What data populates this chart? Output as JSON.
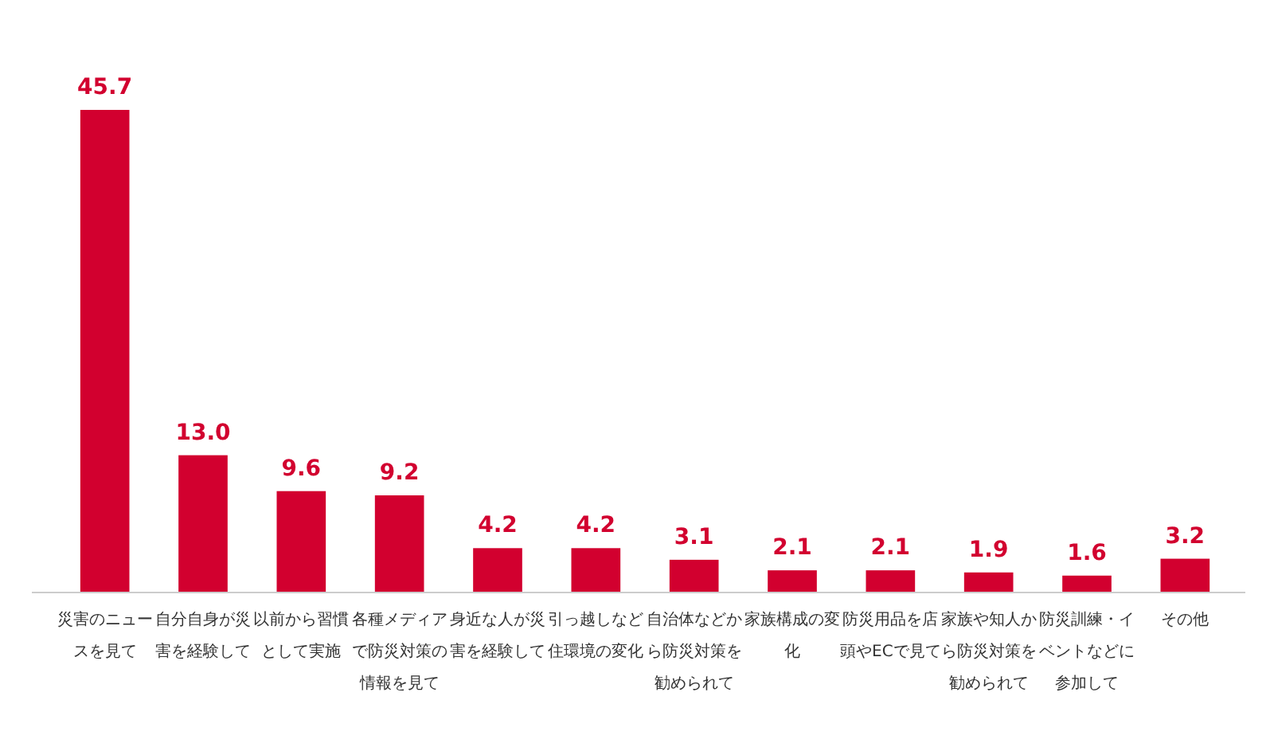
{
  "chart_data": {
    "type": "bar",
    "categories": [
      "災害のニュースを見て",
      "自分自身が災害を経験して",
      "以前から習慣として実施",
      "各種メディアで防災対策の情報を見て",
      "身近な人が災害を経験して",
      "引っ越しなど住環境の変化",
      "自治体などから防災対策を勧められて",
      "家族構成の変化",
      "防災用品を店頭やECで見て",
      "家族や知人から防災対策を勧められて",
      "防災訓練・イベントなどに参加して",
      "その他"
    ],
    "values": [
      45.7,
      13.0,
      9.6,
      9.2,
      4.2,
      4.2,
      3.1,
      2.1,
      2.1,
      1.9,
      1.6,
      3.2
    ],
    "value_labels": [
      "45.7",
      "13.0",
      "9.6",
      "9.2",
      "4.2",
      "4.2",
      "3.1",
      "2.1",
      "2.1",
      "1.9",
      "1.6",
      "3.2"
    ],
    "color": "#d2002f"
  }
}
